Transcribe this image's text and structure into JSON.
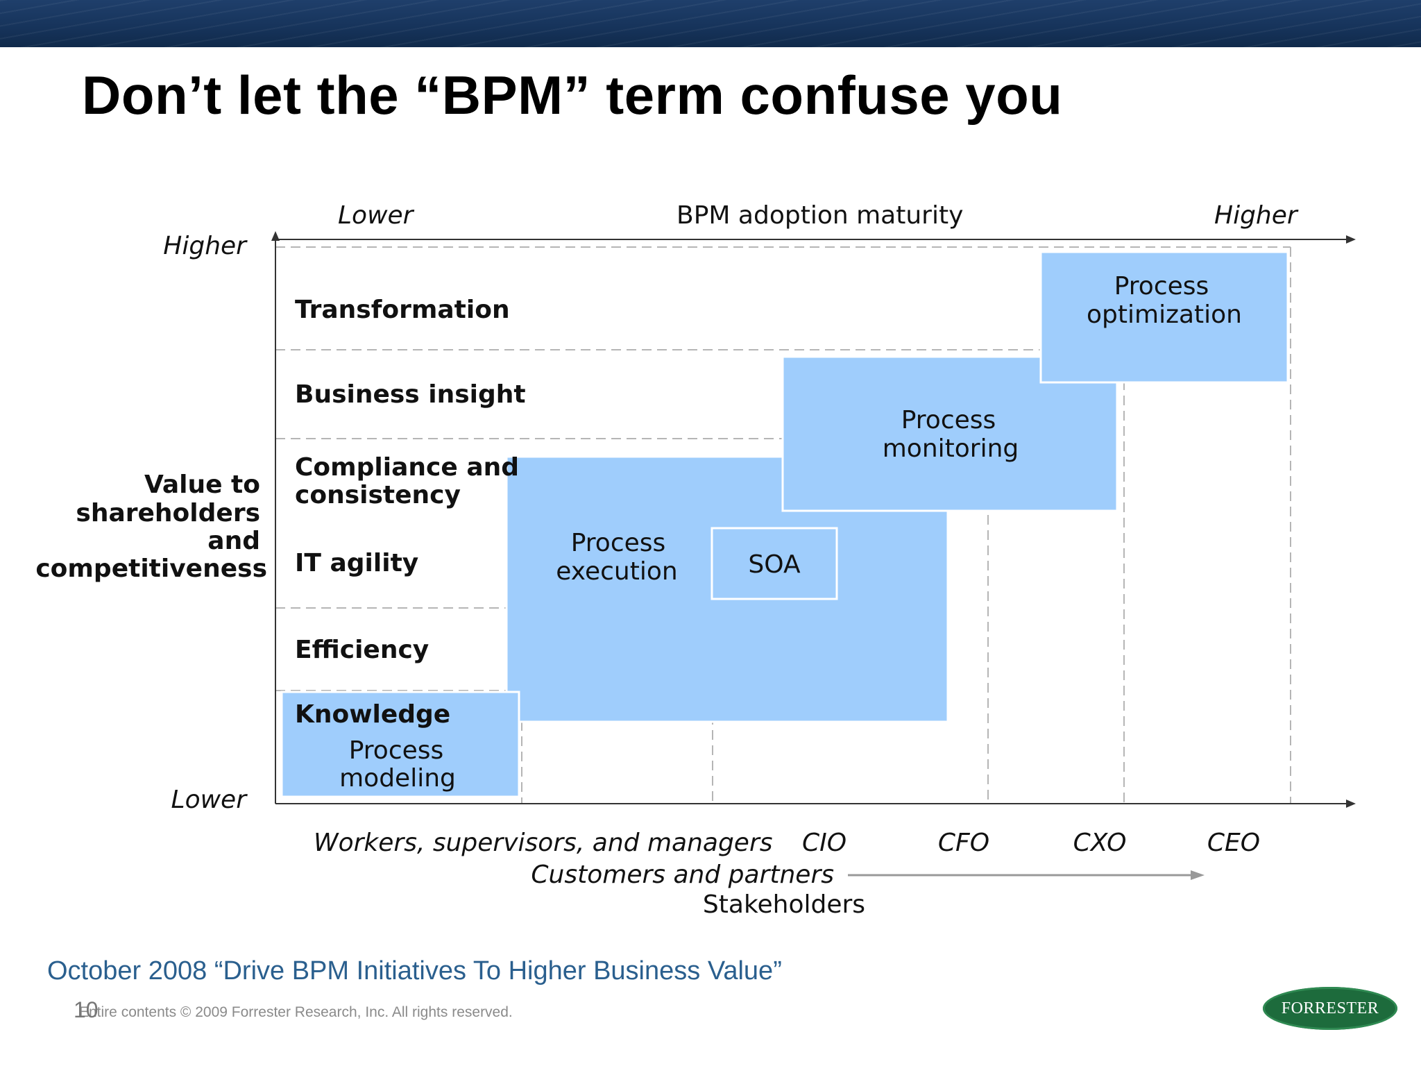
{
  "slide": {
    "title": "Don’t let the “BPM” term confuse you",
    "citation": "October 2008 “Drive BPM Initiatives To Higher Business Value”",
    "page_number": "10",
    "copyright": "Entire contents © 2009  Forrester Research, Inc. All rights reserved.",
    "logo_text": "FORRESTER"
  },
  "diagram": {
    "top_axis": {
      "left": "Lower",
      "title": "BPM adoption maturity",
      "right": "Higher"
    },
    "left_axis": {
      "top": "Higher",
      "bottom": "Lower",
      "title": [
        "Value to",
        "shareholders",
        "and",
        "competitiveness"
      ]
    },
    "rows": [
      "Transformation",
      "Business insight",
      "Compliance and",
      "consistency",
      "IT agility",
      "Efficiency",
      "Knowledge"
    ],
    "boxes": {
      "optimization": [
        "Process",
        "optimization"
      ],
      "monitoring": [
        "Process",
        "monitoring"
      ],
      "execution": [
        "Process",
        "execution"
      ],
      "soa": "SOA",
      "modeling": [
        "Process",
        "modeling"
      ]
    },
    "stakeholders": {
      "workers": "Workers, supervisors, and managers",
      "cio": "CIO",
      "cfo": "CFO",
      "cxo": "CXO",
      "ceo": "CEO",
      "customers": "Customers and partners",
      "title": "Stakeholders"
    },
    "colors": {
      "box_fill": "#9fcdfc",
      "box_border": "#ffffff",
      "grid": "#b5b5b5",
      "axis": "#333333"
    }
  }
}
